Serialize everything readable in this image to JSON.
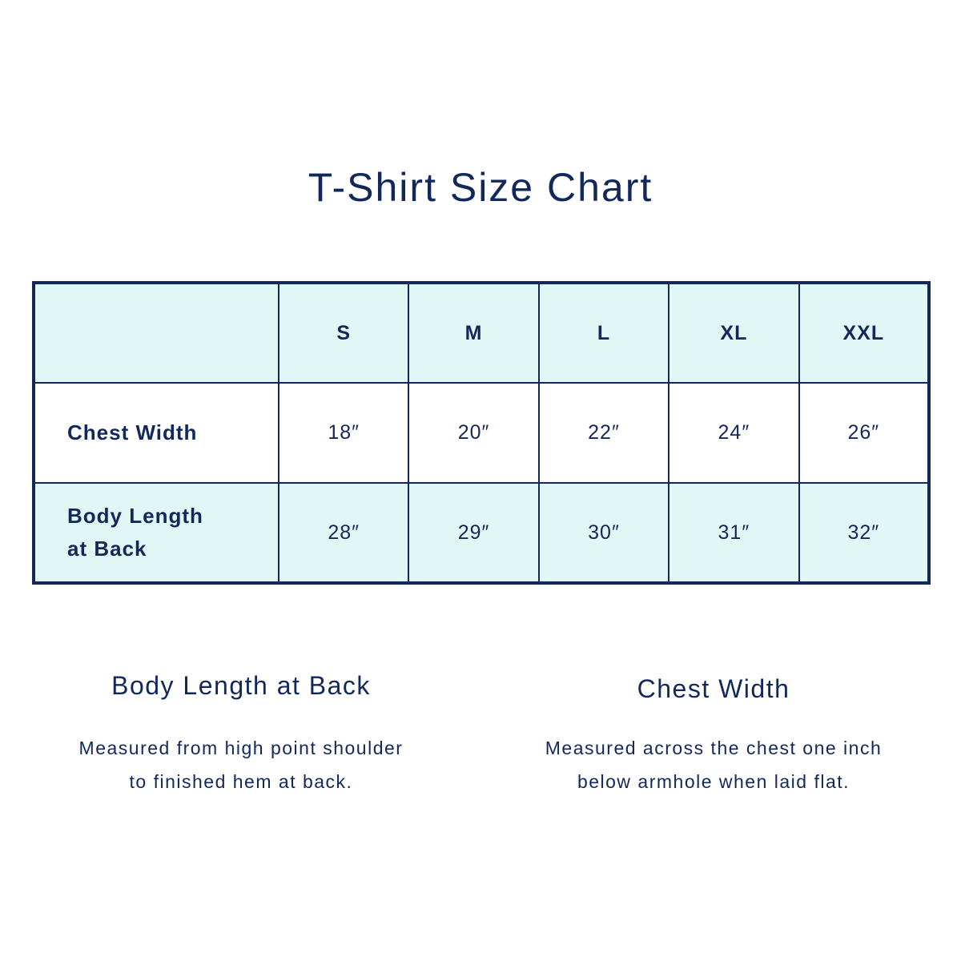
{
  "title": "T-Shirt Size Chart",
  "table": {
    "corner": "",
    "sizes": [
      "S",
      "M",
      "L",
      "XL",
      "XXL"
    ],
    "rows": [
      {
        "label": "Chest Width",
        "values": [
          "18″",
          "20″",
          "22″",
          "24″",
          "26″"
        ]
      },
      {
        "label_line1": "Body Length",
        "label_line2": "at Back",
        "values": [
          "28″",
          "29″",
          "30″",
          "31″",
          "32″"
        ]
      }
    ]
  },
  "sections": [
    {
      "heading": "Body Length at Back",
      "line1": "Measured from high point shoulder",
      "line2": "to finished hem at back."
    },
    {
      "heading": "Chest Width",
      "line1": "Measured across the chest one inch",
      "line2": "below armhole when laid flat."
    }
  ],
  "colors": {
    "navy": "#13285a",
    "header_bg": "#e0f7f5"
  }
}
